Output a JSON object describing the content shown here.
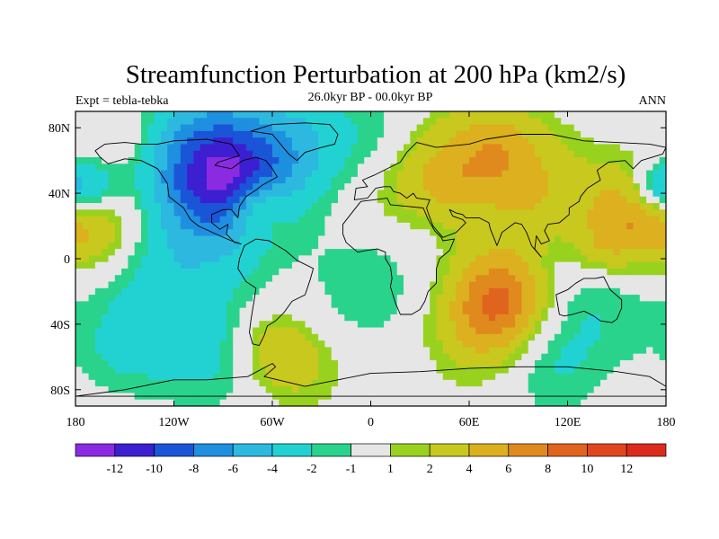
{
  "title": "Streamfunction Perturbation at 200 hPa (km2/s)",
  "subtitle": "26.0kyr BP - 00.0kyr BP",
  "left_label": "Expt = tebla-tebka",
  "right_label": "ANN",
  "lat_ticks": [
    {
      "value": 80,
      "label": "80N"
    },
    {
      "value": 40,
      "label": "40N"
    },
    {
      "value": 0,
      "label": "0"
    },
    {
      "value": -40,
      "label": "40S"
    },
    {
      "value": -80,
      "label": "80S"
    }
  ],
  "lon_ticks": [
    {
      "value": -180,
      "label": "180"
    },
    {
      "value": -120,
      "label": "120W"
    },
    {
      "value": -60,
      "label": "60W"
    },
    {
      "value": 0,
      "label": "0"
    },
    {
      "value": 60,
      "label": "60E"
    },
    {
      "value": 120,
      "label": "120E"
    },
    {
      "value": 180,
      "label": "180"
    }
  ],
  "colorbar": {
    "colors": [
      "#8a2be2",
      "#3c1fd0",
      "#1a55d8",
      "#1f8fe0",
      "#2db8e0",
      "#22d2d2",
      "#2ad38c",
      "#e6e6e6",
      "#99d21e",
      "#c8c81e",
      "#dcb01e",
      "#e08a1e",
      "#e0641e",
      "#e0461e",
      "#dc2b1e"
    ],
    "labels": [
      "-12",
      "-10",
      "-8",
      "-6",
      "-4",
      "-2",
      "-1",
      "1",
      "2",
      "4",
      "6",
      "8",
      "10",
      "12"
    ]
  },
  "field": {
    "blobs": [
      {
        "lon": -95,
        "lat": 56,
        "s": 30,
        "amp": -10
      },
      {
        "lon": -80,
        "lat": 42,
        "s": 22,
        "amp": -4
      },
      {
        "lon": -40,
        "lat": 70,
        "s": 22,
        "amp": -3
      },
      {
        "lon": -170,
        "lat": 42,
        "s": 14,
        "amp": -5
      },
      {
        "lon": 175,
        "lat": 42,
        "s": 12,
        "amp": -5
      },
      {
        "lon": -165,
        "lat": 25,
        "s": 20,
        "amp": 4
      },
      {
        "lon": -70,
        "lat": 32,
        "s": 13,
        "amp": 5
      },
      {
        "lon": 50,
        "lat": 42,
        "s": 30,
        "amp": 7
      },
      {
        "lon": 100,
        "lat": 45,
        "s": 25,
        "amp": 3
      },
      {
        "lon": 160,
        "lat": 25,
        "s": 22,
        "amp": 6
      },
      {
        "lon": 140,
        "lat": 5,
        "s": 12,
        "amp": 2
      },
      {
        "lon": 80,
        "lat": -25,
        "s": 20,
        "amp": 7
      },
      {
        "lon": 65,
        "lat": -45,
        "s": 22,
        "amp": 3
      },
      {
        "lon": -60,
        "lat": -55,
        "s": 16,
        "amp": 3
      },
      {
        "lon": -40,
        "lat": -68,
        "s": 18,
        "amp": 2
      },
      {
        "lon": 40,
        "lat": 20,
        "s": 20,
        "amp": -3
      },
      {
        "lon": 70,
        "lat": 30,
        "s": 16,
        "amp": -2
      },
      {
        "lon": -120,
        "lat": -15,
        "s": 30,
        "amp": -3
      },
      {
        "lon": 0,
        "lat": -15,
        "s": 25,
        "amp": -2
      },
      {
        "lon": 140,
        "lat": -25,
        "s": 28,
        "amp": -2
      },
      {
        "lon": -100,
        "lat": -62,
        "s": 22,
        "amp": -2
      },
      {
        "lon": 110,
        "lat": -65,
        "s": 22,
        "amp": -2
      },
      {
        "lon": -150,
        "lat": -55,
        "s": 20,
        "amp": -2
      },
      {
        "lon": 10,
        "lat": 75,
        "s": 22,
        "amp": -2
      },
      {
        "lon": 80,
        "lat": 75,
        "s": 15,
        "amp": 2
      },
      {
        "lon": -150,
        "lat": 75,
        "s": 15,
        "amp": 2
      }
    ]
  },
  "continents": [
    [
      [
        -168,
        66
      ],
      [
        -162,
        70
      ],
      [
        -150,
        71
      ],
      [
        -140,
        70
      ],
      [
        -130,
        70
      ],
      [
        -120,
        72
      ],
      [
        -100,
        73
      ],
      [
        -85,
        70
      ],
      [
        -80,
        63
      ],
      [
        -93,
        59
      ],
      [
        -95,
        57
      ],
      [
        -85,
        55
      ],
      [
        -78,
        60
      ],
      [
        -70,
        62
      ],
      [
        -64,
        60
      ],
      [
        -60,
        55
      ],
      [
        -57,
        50
      ],
      [
        -66,
        45
      ],
      [
        -70,
        42
      ],
      [
        -76,
        38
      ],
      [
        -80,
        32
      ],
      [
        -81,
        25
      ],
      [
        -85,
        30
      ],
      [
        -90,
        30
      ],
      [
        -97,
        27
      ],
      [
        -97,
        22
      ],
      [
        -92,
        18
      ],
      [
        -87,
        21
      ],
      [
        -88,
        15
      ],
      [
        -83,
        10
      ],
      [
        -79,
        9
      ],
      [
        -85,
        11
      ],
      [
        -92,
        14
      ],
      [
        -105,
        20
      ],
      [
        -110,
        24
      ],
      [
        -114,
        31
      ],
      [
        -118,
        34
      ],
      [
        -123,
        38
      ],
      [
        -124,
        46
      ],
      [
        -130,
        55
      ],
      [
        -140,
        60
      ],
      [
        -150,
        61
      ],
      [
        -160,
        58
      ],
      [
        -165,
        62
      ],
      [
        -168,
        66
      ]
    ],
    [
      [
        -77,
        8
      ],
      [
        -70,
        12
      ],
      [
        -62,
        11
      ],
      [
        -52,
        5
      ],
      [
        -45,
        -1
      ],
      [
        -35,
        -6
      ],
      [
        -37,
        -13
      ],
      [
        -40,
        -22
      ],
      [
        -48,
        -26
      ],
      [
        -53,
        -33
      ],
      [
        -58,
        -38
      ],
      [
        -63,
        -41
      ],
      [
        -65,
        -47
      ],
      [
        -68,
        -53
      ],
      [
        -72,
        -52
      ],
      [
        -74,
        -45
      ],
      [
        -73,
        -37
      ],
      [
        -71,
        -25
      ],
      [
        -70,
        -18
      ],
      [
        -76,
        -14
      ],
      [
        -81,
        -6
      ],
      [
        -80,
        0
      ],
      [
        -77,
        8
      ]
    ],
    [
      [
        -10,
        36
      ],
      [
        -9,
        43
      ],
      [
        -2,
        44
      ],
      [
        -5,
        48
      ],
      [
        2,
        51
      ],
      [
        8,
        54
      ],
      [
        12,
        56
      ],
      [
        18,
        59
      ],
      [
        22,
        65
      ],
      [
        28,
        71
      ],
      [
        40,
        68
      ],
      [
        60,
        70
      ],
      [
        70,
        73
      ],
      [
        90,
        76
      ],
      [
        110,
        76
      ],
      [
        130,
        72
      ],
      [
        150,
        71
      ],
      [
        170,
        70
      ],
      [
        180,
        68
      ],
      [
        178,
        64
      ],
      [
        165,
        60
      ],
      [
        160,
        55
      ],
      [
        155,
        60
      ],
      [
        145,
        59
      ],
      [
        138,
        54
      ],
      [
        140,
        48
      ],
      [
        132,
        43
      ],
      [
        128,
        38
      ],
      [
        127,
        35
      ],
      [
        121,
        31
      ],
      [
        121,
        27
      ],
      [
        115,
        22
      ],
      [
        108,
        21
      ],
      [
        106,
        17
      ],
      [
        109,
        11
      ],
      [
        104,
        9
      ],
      [
        101,
        14
      ],
      [
        100,
        6
      ],
      [
        104,
        1
      ],
      [
        98,
        8
      ],
      [
        95,
        16
      ],
      [
        92,
        21
      ],
      [
        88,
        22
      ],
      [
        80,
        16
      ],
      [
        77,
        8
      ],
      [
        73,
        18
      ],
      [
        72,
        22
      ],
      [
        66,
        25
      ],
      [
        58,
        25
      ],
      [
        56,
        27
      ],
      [
        52,
        28
      ],
      [
        48,
        30
      ],
      [
        50,
        26
      ],
      [
        56,
        24
      ],
      [
        58,
        22
      ],
      [
        52,
        16
      ],
      [
        44,
        13
      ],
      [
        38,
        20
      ],
      [
        35,
        28
      ],
      [
        34,
        31
      ],
      [
        36,
        36
      ],
      [
        28,
        37
      ],
      [
        26,
        40
      ],
      [
        22,
        37
      ],
      [
        18,
        40
      ],
      [
        14,
        41
      ],
      [
        12,
        44
      ],
      [
        8,
        44
      ],
      [
        3,
        43
      ],
      [
        -2,
        37
      ],
      [
        -10,
        36
      ]
    ],
    [
      [
        -17,
        21
      ],
      [
        -17,
        15
      ],
      [
        -15,
        10
      ],
      [
        -8,
        4
      ],
      [
        -3,
        5
      ],
      [
        4,
        6
      ],
      [
        9,
        4
      ],
      [
        9,
        0
      ],
      [
        12,
        -5
      ],
      [
        13,
        -12
      ],
      [
        12,
        -17
      ],
      [
        15,
        -27
      ],
      [
        18,
        -34
      ],
      [
        25,
        -34
      ],
      [
        30,
        -31
      ],
      [
        33,
        -26
      ],
      [
        35,
        -20
      ],
      [
        40,
        -15
      ],
      [
        40,
        -6
      ],
      [
        42,
        0
      ],
      [
        48,
        5
      ],
      [
        51,
        12
      ],
      [
        44,
        11
      ],
      [
        43,
        13
      ],
      [
        39,
        17
      ],
      [
        35,
        24
      ],
      [
        32,
        31
      ],
      [
        22,
        32
      ],
      [
        12,
        33
      ],
      [
        10,
        37
      ],
      [
        2,
        36
      ],
      [
        -6,
        35
      ],
      [
        -10,
        30
      ],
      [
        -17,
        21
      ]
    ],
    [
      [
        113,
        -22
      ],
      [
        115,
        -34
      ],
      [
        118,
        -35
      ],
      [
        123,
        -34
      ],
      [
        130,
        -32
      ],
      [
        136,
        -35
      ],
      [
        140,
        -38
      ],
      [
        147,
        -39
      ],
      [
        150,
        -37
      ],
      [
        153,
        -30
      ],
      [
        153,
        -25
      ],
      [
        146,
        -19
      ],
      [
        142,
        -11
      ],
      [
        137,
        -12
      ],
      [
        130,
        -12
      ],
      [
        125,
        -15
      ],
      [
        120,
        -19
      ],
      [
        113,
        -22
      ]
    ],
    [
      [
        -73,
        78
      ],
      [
        -60,
        82
      ],
      [
        -40,
        83
      ],
      [
        -25,
        82
      ],
      [
        -20,
        76
      ],
      [
        -22,
        70
      ],
      [
        -30,
        68
      ],
      [
        -40,
        65
      ],
      [
        -45,
        60
      ],
      [
        -50,
        64
      ],
      [
        -55,
        70
      ],
      [
        -60,
        76
      ],
      [
        -73,
        78
      ]
    ],
    [
      [
        -180,
        -84
      ],
      [
        -150,
        -80
      ],
      [
        -120,
        -74
      ],
      [
        -100,
        -74
      ],
      [
        -75,
        -72
      ],
      [
        -60,
        -64
      ],
      [
        -58,
        -66
      ],
      [
        -65,
        -72
      ],
      [
        -40,
        -78
      ],
      [
        -20,
        -74
      ],
      [
        0,
        -70
      ],
      [
        30,
        -69
      ],
      [
        60,
        -67
      ],
      [
        90,
        -66
      ],
      [
        120,
        -66
      ],
      [
        150,
        -69
      ],
      [
        170,
        -72
      ],
      [
        180,
        -78
      ],
      [
        180,
        -84
      ],
      [
        -180,
        -84
      ]
    ]
  ]
}
